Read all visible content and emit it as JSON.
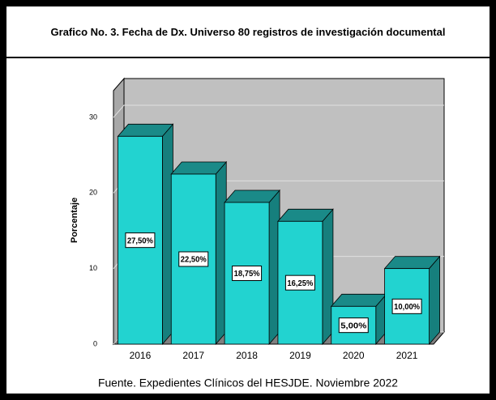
{
  "chart_data": {
    "type": "bar3d",
    "title": "Grafico No. 3. Fecha de Dx. Universo 80 registros de investigación documental",
    "ylabel": "Porcentaje",
    "caption": "Fuente. Expedientes Clínicos del HESJDE. Noviembre 2022",
    "categories": [
      "2016",
      "2017",
      "2018",
      "2019",
      "2020",
      "2021"
    ],
    "values": [
      27.5,
      22.5,
      18.75,
      16.25,
      5,
      10
    ],
    "value_labels": [
      "27,50%",
      "22,50%",
      "18,75%",
      "16,25%",
      "5,00%",
      "10,00%"
    ],
    "color": "#22d3d0",
    "ylim": [
      0,
      30
    ],
    "yticks": [
      0,
      10,
      20,
      30
    ],
    "grid": true
  }
}
